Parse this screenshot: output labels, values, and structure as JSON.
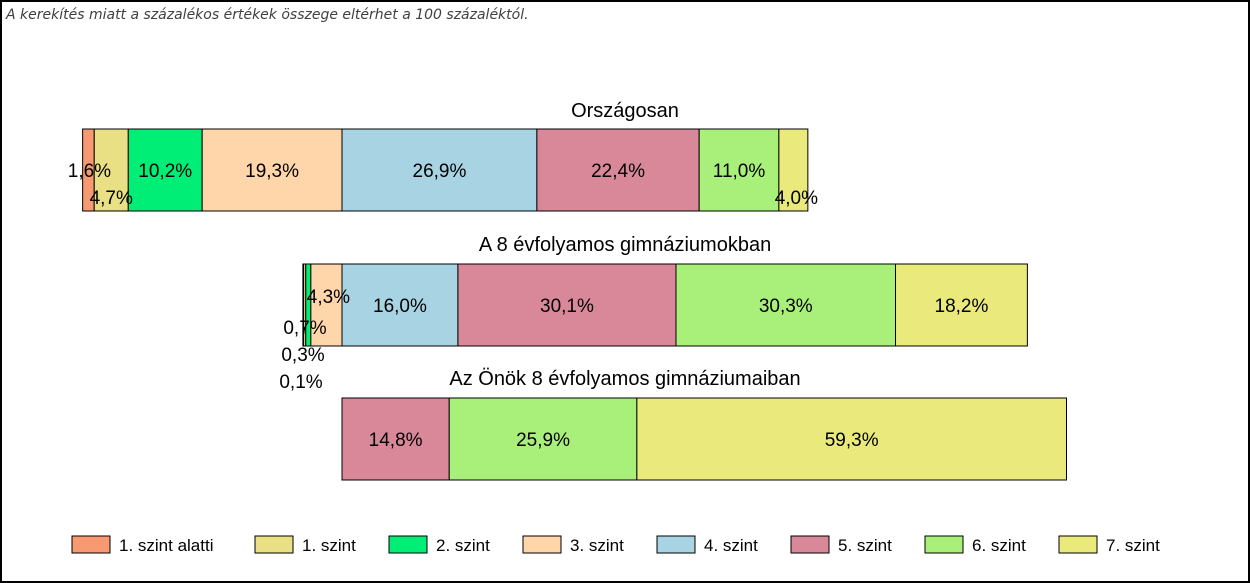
{
  "note": "A kerekítés miatt a  százalékos értékek összege eltérhet a 100 százaléktól.",
  "chart_data": {
    "type": "bar",
    "orientation": "horizontal",
    "stacked": true,
    "levels": [
      {
        "name": "1. szint alatti",
        "color": "#F79A72"
      },
      {
        "name": "1. szint",
        "color": "#E9DF84"
      },
      {
        "name": "2. szint",
        "color": "#00EE76"
      },
      {
        "name": "3. szint",
        "color": "#FFD5AA"
      },
      {
        "name": "4. szint",
        "color": "#A8D3E3"
      },
      {
        "name": "5. szint",
        "color": "#D98899"
      },
      {
        "name": "6. szint",
        "color": "#A9F07B"
      },
      {
        "name": "7. szint",
        "color": "#EAEA7C"
      }
    ],
    "bars": [
      {
        "title": "Országosan",
        "values": [
          1.6,
          4.7,
          10.2,
          19.3,
          26.9,
          22.4,
          11.0,
          4.0
        ],
        "labels": [
          "1,6%",
          "4,7%",
          "10,2%",
          "19,3%",
          "26,9%",
          "22,4%",
          "11,0%",
          "4,0%"
        ]
      },
      {
        "title": "A 8 évfolyamos gimnáziumokban",
        "values": [
          0.1,
          0.3,
          0.7,
          4.3,
          16.0,
          30.1,
          30.3,
          18.2
        ],
        "labels": [
          "0,1%",
          "0,3%",
          "0,7%",
          "4,3%",
          "16,0%",
          "30,1%",
          "30,3%",
          "18,2%"
        ]
      },
      {
        "title": "Az Önök 8 évfolyamos gimnáziumaiban",
        "values": [
          0,
          0,
          0,
          0,
          0,
          14.8,
          25.9,
          59.3
        ],
        "labels": [
          "",
          "",
          "",
          "",
          "",
          "14,8%",
          "25,9%",
          "59,3%"
        ]
      }
    ],
    "legend_position": "bottom",
    "grid": false
  }
}
